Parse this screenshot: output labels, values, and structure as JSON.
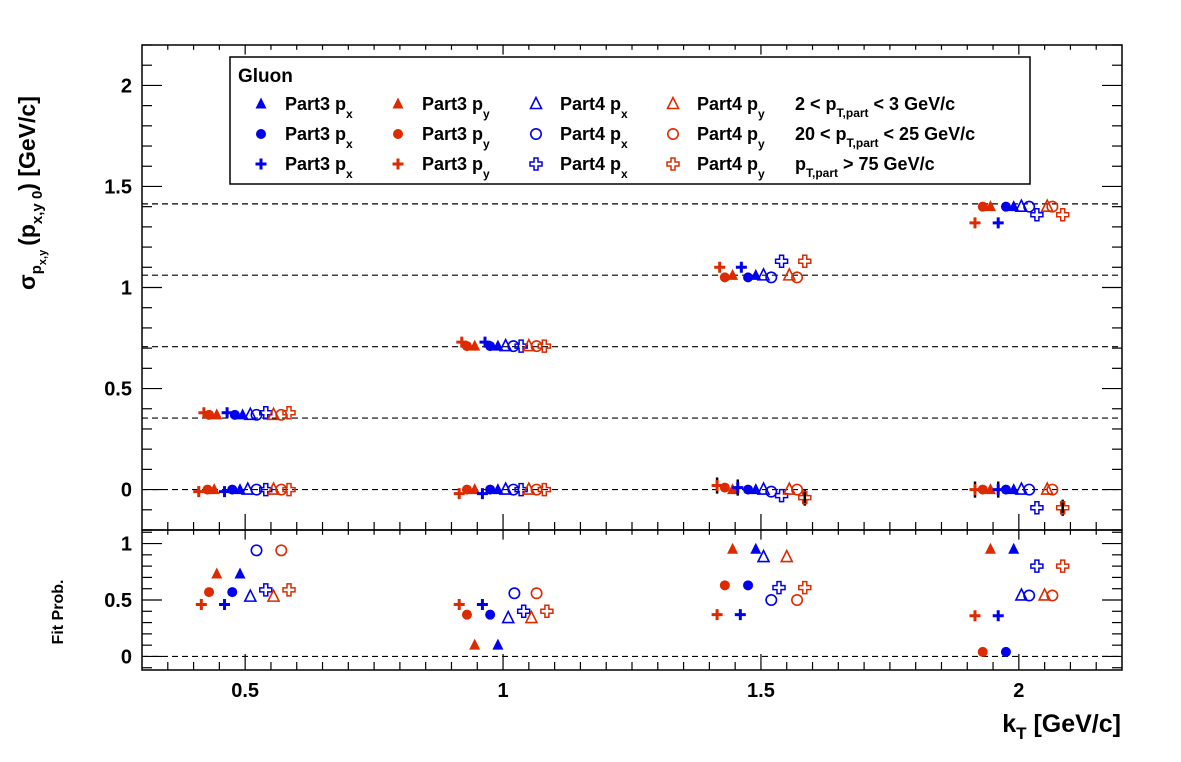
{
  "colors": {
    "blue": "#0000ee",
    "red": "#dd2b00",
    "axis": "#000000",
    "grid": "#000000"
  },
  "chart_data": [
    {
      "type": "scatter",
      "panel": "top",
      "ylabel": {
        "sigma": "σ",
        "sub1": "p",
        "sub2": "x,y",
        "paren": "(p",
        "sub3": "x,y 0",
        "units": ") [GeV/c]"
      },
      "ylim": [
        -0.2,
        2.2
      ],
      "xlim": [
        0.3,
        2.2
      ],
      "yticks": [
        {
          "v": 0,
          "label": "0"
        },
        {
          "v": 0.5,
          "label": "0.5"
        },
        {
          "v": 1,
          "label": "1"
        },
        {
          "v": 1.5,
          "label": "1.5"
        },
        {
          "v": 2,
          "label": "2"
        }
      ],
      "dashed_lines": [
        0,
        0.354,
        0.707,
        1.061,
        1.414
      ],
      "legend": {
        "placement": "top-left",
        "header": "Gluon",
        "rows": [
          {
            "cond": "2 < p",
            "condsub": "T,part",
            "condtail": " < 3 GeV/c",
            "marker": "triangle"
          },
          {
            "cond": "20 < p",
            "condsub": "T,part",
            "condtail": " < 25 GeV/c",
            "marker": "circle"
          },
          {
            "cond": "p",
            "condsub": "T,part",
            "condtail": " > 75 GeV/c",
            "marker": "cross"
          }
        ],
        "columns": [
          {
            "label": "Part3 p",
            "sub": "x",
            "color": "blue",
            "filled": true
          },
          {
            "label": "Part3 p",
            "sub": "y",
            "color": "red",
            "filled": true
          },
          {
            "label": "Part4 p",
            "sub": "x",
            "color": "blue",
            "filled": false
          },
          {
            "label": "Part4 p",
            "sub": "y",
            "color": "red",
            "filled": false
          }
        ]
      },
      "points": [
        {
          "x": 0.41,
          "y": -0.01,
          "m": "pluscross",
          "c": "red"
        },
        {
          "x": 0.42,
          "y": 0.38,
          "m": "pluscross",
          "c": "red"
        },
        {
          "x": 0.427,
          "y": 0.0,
          "m": "circle",
          "c": "red"
        },
        {
          "x": 0.43,
          "y": 0.37,
          "m": "circle",
          "c": "red"
        },
        {
          "x": 0.44,
          "y": 0.0,
          "m": "triangle",
          "c": "red"
        },
        {
          "x": 0.445,
          "y": 0.37,
          "m": "triangle",
          "c": "red"
        },
        {
          "x": 0.46,
          "y": -0.01,
          "m": "pluscross",
          "c": "blue"
        },
        {
          "x": 0.465,
          "y": 0.38,
          "m": "pluscross",
          "c": "blue"
        },
        {
          "x": 0.475,
          "y": 0.0,
          "m": "circle",
          "c": "blue"
        },
        {
          "x": 0.48,
          "y": 0.37,
          "m": "circle",
          "c": "blue"
        },
        {
          "x": 0.49,
          "y": 0.0,
          "m": "triangle",
          "c": "blue"
        },
        {
          "x": 0.495,
          "y": 0.37,
          "m": "triangle",
          "c": "blue"
        },
        {
          "x": 0.505,
          "y": 0.0,
          "m": "triangle_o",
          "c": "blue"
        },
        {
          "x": 0.51,
          "y": 0.37,
          "m": "triangle_o",
          "c": "blue"
        },
        {
          "x": 0.522,
          "y": 0.0,
          "m": "circle_o",
          "c": "blue"
        },
        {
          "x": 0.522,
          "y": 0.37,
          "m": "circle_o",
          "c": "blue"
        },
        {
          "x": 0.54,
          "y": 0.0,
          "m": "cross_o",
          "c": "blue"
        },
        {
          "x": 0.54,
          "y": 0.38,
          "m": "cross_o",
          "c": "blue"
        },
        {
          "x": 0.555,
          "y": 0.0,
          "m": "triangle_o",
          "c": "red"
        },
        {
          "x": 0.555,
          "y": 0.37,
          "m": "triangle_o",
          "c": "red"
        },
        {
          "x": 0.57,
          "y": 0.0,
          "m": "circle_o",
          "c": "red"
        },
        {
          "x": 0.57,
          "y": 0.37,
          "m": "circle_o",
          "c": "red"
        },
        {
          "x": 0.585,
          "y": 0.0,
          "m": "cross_o",
          "c": "red"
        },
        {
          "x": 0.585,
          "y": 0.38,
          "m": "cross_o",
          "c": "red"
        },
        {
          "x": 0.915,
          "y": -0.02,
          "m": "pluscross",
          "c": "red"
        },
        {
          "x": 0.92,
          "y": 0.73,
          "m": "pluscross",
          "c": "red"
        },
        {
          "x": 0.93,
          "y": 0.0,
          "m": "circle",
          "c": "red"
        },
        {
          "x": 0.93,
          "y": 0.71,
          "m": "circle",
          "c": "red"
        },
        {
          "x": 0.945,
          "y": 0.0,
          "m": "triangle",
          "c": "red"
        },
        {
          "x": 0.945,
          "y": 0.71,
          "m": "triangle",
          "c": "red"
        },
        {
          "x": 0.96,
          "y": -0.02,
          "m": "pluscross",
          "c": "blue"
        },
        {
          "x": 0.965,
          "y": 0.73,
          "m": "pluscross",
          "c": "blue"
        },
        {
          "x": 0.975,
          "y": 0.0,
          "m": "circle",
          "c": "blue"
        },
        {
          "x": 0.975,
          "y": 0.71,
          "m": "circle",
          "c": "blue"
        },
        {
          "x": 0.99,
          "y": 0.0,
          "m": "triangle",
          "c": "blue"
        },
        {
          "x": 0.99,
          "y": 0.71,
          "m": "triangle",
          "c": "blue"
        },
        {
          "x": 1.005,
          "y": 0.0,
          "m": "triangle_o",
          "c": "blue"
        },
        {
          "x": 1.005,
          "y": 0.71,
          "m": "triangle_o",
          "c": "blue"
        },
        {
          "x": 1.02,
          "y": 0.0,
          "m": "circle_o",
          "c": "blue"
        },
        {
          "x": 1.02,
          "y": 0.71,
          "m": "circle_o",
          "c": "blue"
        },
        {
          "x": 1.035,
          "y": 0.0,
          "m": "cross_o",
          "c": "blue"
        },
        {
          "x": 1.035,
          "y": 0.71,
          "m": "cross_o",
          "c": "blue"
        },
        {
          "x": 1.05,
          "y": 0.0,
          "m": "triangle_o",
          "c": "red"
        },
        {
          "x": 1.05,
          "y": 0.71,
          "m": "triangle_o",
          "c": "red"
        },
        {
          "x": 1.065,
          "y": 0.0,
          "m": "circle_o",
          "c": "red"
        },
        {
          "x": 1.065,
          "y": 0.71,
          "m": "circle_o",
          "c": "red"
        },
        {
          "x": 1.08,
          "y": 0.0,
          "m": "cross_o",
          "c": "red"
        },
        {
          "x": 1.08,
          "y": 0.71,
          "m": "cross_o",
          "c": "red"
        },
        {
          "x": 1.415,
          "y": 0.02,
          "m": "pluscross",
          "c": "red",
          "err": 0.04
        },
        {
          "x": 1.42,
          "y": 1.1,
          "m": "pluscross",
          "c": "red"
        },
        {
          "x": 1.43,
          "y": 0.01,
          "m": "circle",
          "c": "red"
        },
        {
          "x": 1.43,
          "y": 1.05,
          "m": "circle",
          "c": "red"
        },
        {
          "x": 1.445,
          "y": 0.0,
          "m": "triangle",
          "c": "red"
        },
        {
          "x": 1.445,
          "y": 1.06,
          "m": "triangle",
          "c": "red"
        },
        {
          "x": 1.455,
          "y": 0.01,
          "m": "pluscross",
          "c": "blue",
          "err": 0.04
        },
        {
          "x": 1.462,
          "y": 1.1,
          "m": "pluscross",
          "c": "blue"
        },
        {
          "x": 1.475,
          "y": 0.0,
          "m": "circle",
          "c": "blue"
        },
        {
          "x": 1.475,
          "y": 1.05,
          "m": "circle",
          "c": "blue"
        },
        {
          "x": 1.49,
          "y": 0.0,
          "m": "triangle",
          "c": "blue"
        },
        {
          "x": 1.49,
          "y": 1.06,
          "m": "triangle",
          "c": "blue"
        },
        {
          "x": 1.505,
          "y": 0.0,
          "m": "triangle_o",
          "c": "blue"
        },
        {
          "x": 1.505,
          "y": 1.06,
          "m": "triangle_o",
          "c": "blue"
        },
        {
          "x": 1.52,
          "y": -0.01,
          "m": "circle_o",
          "c": "blue"
        },
        {
          "x": 1.52,
          "y": 1.05,
          "m": "circle_o",
          "c": "blue"
        },
        {
          "x": 1.54,
          "y": -0.03,
          "m": "cross_o",
          "c": "blue"
        },
        {
          "x": 1.54,
          "y": 1.13,
          "m": "cross_o",
          "c": "blue"
        },
        {
          "x": 1.555,
          "y": 0.0,
          "m": "triangle_o",
          "c": "red"
        },
        {
          "x": 1.555,
          "y": 1.06,
          "m": "triangle_o",
          "c": "red"
        },
        {
          "x": 1.57,
          "y": 0.0,
          "m": "circle_o",
          "c": "red"
        },
        {
          "x": 1.57,
          "y": 1.05,
          "m": "circle_o",
          "c": "red"
        },
        {
          "x": 1.585,
          "y": -0.04,
          "m": "cross_o",
          "c": "red",
          "err": 0.04
        },
        {
          "x": 1.585,
          "y": 1.13,
          "m": "cross_o",
          "c": "red"
        },
        {
          "x": 1.915,
          "y": 0.0,
          "m": "pluscross",
          "c": "red",
          "err": 0.04
        },
        {
          "x": 1.915,
          "y": 1.32,
          "m": "pluscross",
          "c": "red"
        },
        {
          "x": 1.93,
          "y": 0.0,
          "m": "circle",
          "c": "red"
        },
        {
          "x": 1.93,
          "y": 1.4,
          "m": "circle",
          "c": "red"
        },
        {
          "x": 1.945,
          "y": 0.0,
          "m": "triangle",
          "c": "red"
        },
        {
          "x": 1.945,
          "y": 1.4,
          "m": "triangle",
          "c": "red"
        },
        {
          "x": 1.96,
          "y": 0.0,
          "m": "pluscross",
          "c": "blue",
          "err": 0.04
        },
        {
          "x": 1.96,
          "y": 1.32,
          "m": "pluscross",
          "c": "blue"
        },
        {
          "x": 1.975,
          "y": 0.0,
          "m": "circle",
          "c": "blue"
        },
        {
          "x": 1.975,
          "y": 1.4,
          "m": "circle",
          "c": "blue"
        },
        {
          "x": 1.99,
          "y": 0.0,
          "m": "triangle",
          "c": "blue"
        },
        {
          "x": 1.99,
          "y": 1.4,
          "m": "triangle",
          "c": "blue"
        },
        {
          "x": 2.005,
          "y": 0.0,
          "m": "triangle_o",
          "c": "blue"
        },
        {
          "x": 2.005,
          "y": 1.4,
          "m": "triangle_o",
          "c": "blue"
        },
        {
          "x": 2.02,
          "y": 0.0,
          "m": "circle_o",
          "c": "blue"
        },
        {
          "x": 2.02,
          "y": 1.4,
          "m": "circle_o",
          "c": "blue"
        },
        {
          "x": 2.035,
          "y": -0.09,
          "m": "cross_o",
          "c": "blue"
        },
        {
          "x": 2.035,
          "y": 1.36,
          "m": "cross_o",
          "c": "blue"
        },
        {
          "x": 2.055,
          "y": 0.0,
          "m": "triangle_o",
          "c": "red"
        },
        {
          "x": 2.055,
          "y": 1.4,
          "m": "triangle_o",
          "c": "red"
        },
        {
          "x": 2.065,
          "y": 0.0,
          "m": "circle_o",
          "c": "red"
        },
        {
          "x": 2.065,
          "y": 1.4,
          "m": "circle_o",
          "c": "red"
        },
        {
          "x": 2.085,
          "y": -0.09,
          "m": "cross_o",
          "c": "red",
          "err": 0.04
        },
        {
          "x": 2.085,
          "y": 1.36,
          "m": "cross_o",
          "c": "red"
        }
      ]
    },
    {
      "type": "scatter",
      "panel": "bottom",
      "ylabel": "Fit Prob.",
      "xlabel": {
        "main": "k",
        "sub": "T",
        "tail": " [GeV/c]"
      },
      "ylim": [
        -0.12,
        1.12
      ],
      "xlim": [
        0.3,
        2.2
      ],
      "yticks": [
        {
          "v": 0,
          "label": "0"
        },
        {
          "v": 0.5,
          "label": "0.5"
        },
        {
          "v": 1,
          "label": "1"
        }
      ],
      "xticks": [
        {
          "v": 0.5,
          "label": "0.5"
        },
        {
          "v": 1,
          "label": "1"
        },
        {
          "v": 1.5,
          "label": "1.5"
        },
        {
          "v": 2,
          "label": "2"
        }
      ],
      "dashed_lines": [
        0
      ],
      "points": [
        {
          "x": 0.415,
          "y": 0.46,
          "m": "pluscross",
          "c": "red"
        },
        {
          "x": 0.43,
          "y": 0.57,
          "m": "circle",
          "c": "red"
        },
        {
          "x": 0.445,
          "y": 0.73,
          "m": "triangle",
          "c": "red"
        },
        {
          "x": 0.46,
          "y": 0.46,
          "m": "pluscross",
          "c": "blue"
        },
        {
          "x": 0.475,
          "y": 0.57,
          "m": "circle",
          "c": "blue"
        },
        {
          "x": 0.49,
          "y": 0.73,
          "m": "triangle",
          "c": "blue"
        },
        {
          "x": 0.51,
          "y": 0.53,
          "m": "triangle_o",
          "c": "blue"
        },
        {
          "x": 0.522,
          "y": 0.94,
          "m": "circle_o",
          "c": "blue"
        },
        {
          "x": 0.54,
          "y": 0.59,
          "m": "cross_o",
          "c": "blue"
        },
        {
          "x": 0.555,
          "y": 0.53,
          "m": "triangle_o",
          "c": "red"
        },
        {
          "x": 0.57,
          "y": 0.94,
          "m": "circle_o",
          "c": "red"
        },
        {
          "x": 0.585,
          "y": 0.59,
          "m": "cross_o",
          "c": "red"
        },
        {
          "x": 0.915,
          "y": 0.46,
          "m": "pluscross",
          "c": "red"
        },
        {
          "x": 0.93,
          "y": 0.37,
          "m": "circle",
          "c": "red"
        },
        {
          "x": 0.945,
          "y": 0.1,
          "m": "triangle",
          "c": "red"
        },
        {
          "x": 0.96,
          "y": 0.46,
          "m": "pluscross",
          "c": "blue"
        },
        {
          "x": 0.975,
          "y": 0.37,
          "m": "circle",
          "c": "blue"
        },
        {
          "x": 0.99,
          "y": 0.1,
          "m": "triangle",
          "c": "blue"
        },
        {
          "x": 1.01,
          "y": 0.34,
          "m": "triangle_o",
          "c": "blue"
        },
        {
          "x": 1.022,
          "y": 0.56,
          "m": "circle_o",
          "c": "blue"
        },
        {
          "x": 1.04,
          "y": 0.4,
          "m": "cross_o",
          "c": "blue"
        },
        {
          "x": 1.055,
          "y": 0.34,
          "m": "triangle_o",
          "c": "red"
        },
        {
          "x": 1.065,
          "y": 0.56,
          "m": "circle_o",
          "c": "red"
        },
        {
          "x": 1.085,
          "y": 0.4,
          "m": "cross_o",
          "c": "red"
        },
        {
          "x": 1.415,
          "y": 0.37,
          "m": "pluscross",
          "c": "red"
        },
        {
          "x": 1.43,
          "y": 0.63,
          "m": "circle",
          "c": "red"
        },
        {
          "x": 1.445,
          "y": 0.95,
          "m": "triangle",
          "c": "red"
        },
        {
          "x": 1.46,
          "y": 0.37,
          "m": "pluscross",
          "c": "blue"
        },
        {
          "x": 1.475,
          "y": 0.63,
          "m": "circle",
          "c": "blue"
        },
        {
          "x": 1.49,
          "y": 0.95,
          "m": "triangle",
          "c": "blue"
        },
        {
          "x": 1.505,
          "y": 0.88,
          "m": "triangle_o",
          "c": "blue"
        },
        {
          "x": 1.52,
          "y": 0.5,
          "m": "circle_o",
          "c": "blue"
        },
        {
          "x": 1.535,
          "y": 0.61,
          "m": "cross_o",
          "c": "blue"
        },
        {
          "x": 1.55,
          "y": 0.88,
          "m": "triangle_o",
          "c": "red"
        },
        {
          "x": 1.57,
          "y": 0.5,
          "m": "circle_o",
          "c": "red"
        },
        {
          "x": 1.585,
          "y": 0.61,
          "m": "cross_o",
          "c": "red"
        },
        {
          "x": 1.915,
          "y": 0.36,
          "m": "pluscross",
          "c": "red"
        },
        {
          "x": 1.93,
          "y": 0.04,
          "m": "circle",
          "c": "red"
        },
        {
          "x": 1.945,
          "y": 0.95,
          "m": "triangle",
          "c": "red"
        },
        {
          "x": 1.96,
          "y": 0.36,
          "m": "pluscross",
          "c": "blue"
        },
        {
          "x": 1.975,
          "y": 0.04,
          "m": "circle",
          "c": "blue"
        },
        {
          "x": 1.99,
          "y": 0.95,
          "m": "triangle",
          "c": "blue"
        },
        {
          "x": 2.005,
          "y": 0.54,
          "m": "triangle_o",
          "c": "blue"
        },
        {
          "x": 2.02,
          "y": 0.54,
          "m": "circle_o",
          "c": "blue"
        },
        {
          "x": 2.035,
          "y": 0.8,
          "m": "cross_o",
          "c": "blue"
        },
        {
          "x": 2.05,
          "y": 0.54,
          "m": "triangle_o",
          "c": "red"
        },
        {
          "x": 2.065,
          "y": 0.54,
          "m": "circle_o",
          "c": "red"
        },
        {
          "x": 2.085,
          "y": 0.8,
          "m": "cross_o",
          "c": "red"
        }
      ]
    }
  ]
}
